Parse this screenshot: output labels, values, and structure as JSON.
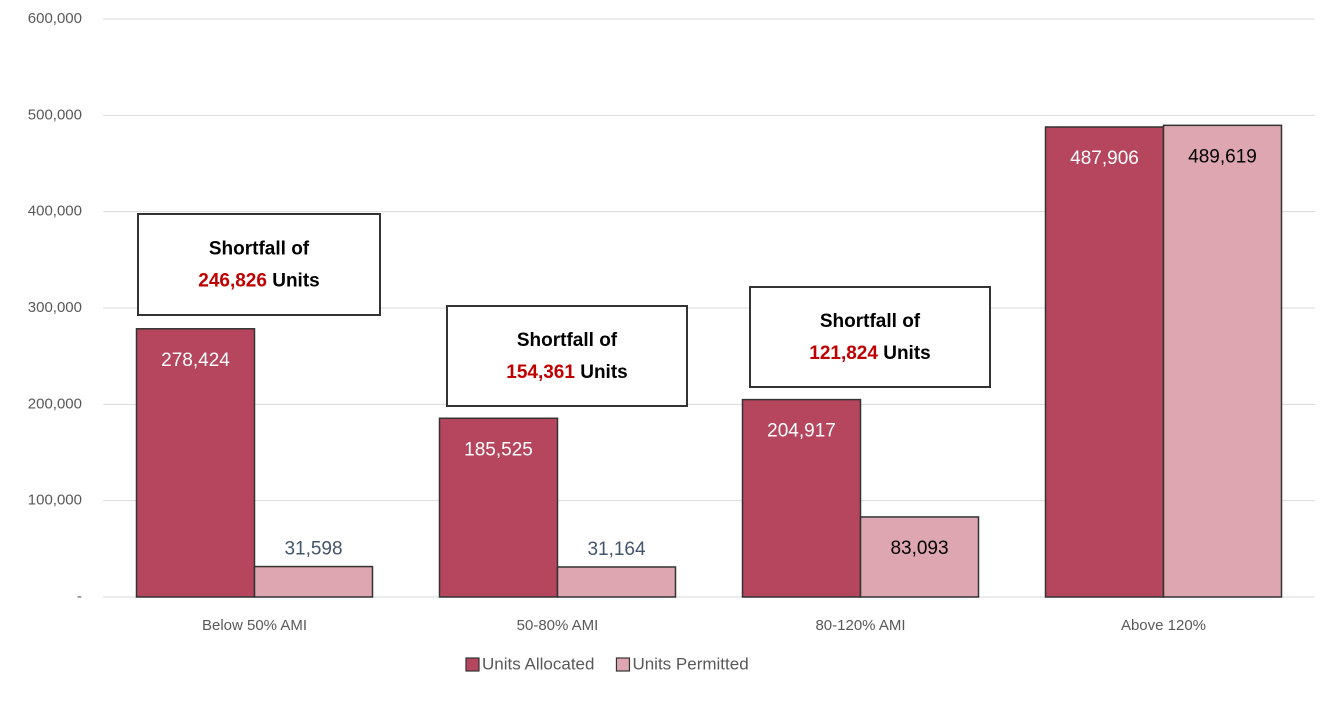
{
  "chart_data": {
    "type": "bar",
    "categories": [
      "Below 50% AMI",
      "50-80% AMI",
      "80-120% AMI",
      "Above 120%"
    ],
    "series": [
      {
        "name": "Units Allocated",
        "color": "#b5465e",
        "values": [
          278424,
          185525,
          204917,
          487906
        ],
        "value_labels": [
          "278,424",
          "185,525",
          "204,917",
          "487,906"
        ]
      },
      {
        "name": "Units Permitted",
        "color": "#dea6b0",
        "values": [
          31598,
          31164,
          83093,
          489619
        ],
        "value_labels": [
          "31,598",
          "31,164",
          "83,093",
          "489,619"
        ]
      }
    ],
    "ylim": [
      0,
      600000
    ],
    "yticks": [
      {
        "value": 0,
        "label": "-"
      },
      {
        "value": 100000,
        "label": "100,000"
      },
      {
        "value": 200000,
        "label": "200,000"
      },
      {
        "value": 300000,
        "label": "300,000"
      },
      {
        "value": 400000,
        "label": "400,000"
      },
      {
        "value": 500000,
        "label": "500,000"
      },
      {
        "value": 600000,
        "label": "600,000"
      }
    ],
    "grid": true,
    "legend": "bottom",
    "annotations": [
      {
        "line1": "Shortfall of",
        "amount": "246,826",
        "unit": "Units"
      },
      {
        "line1": "Shortfall of",
        "amount": "154,361",
        "unit": "Units"
      },
      {
        "line1": "Shortfall of",
        "amount": "121,824",
        "unit": "Units"
      }
    ]
  }
}
